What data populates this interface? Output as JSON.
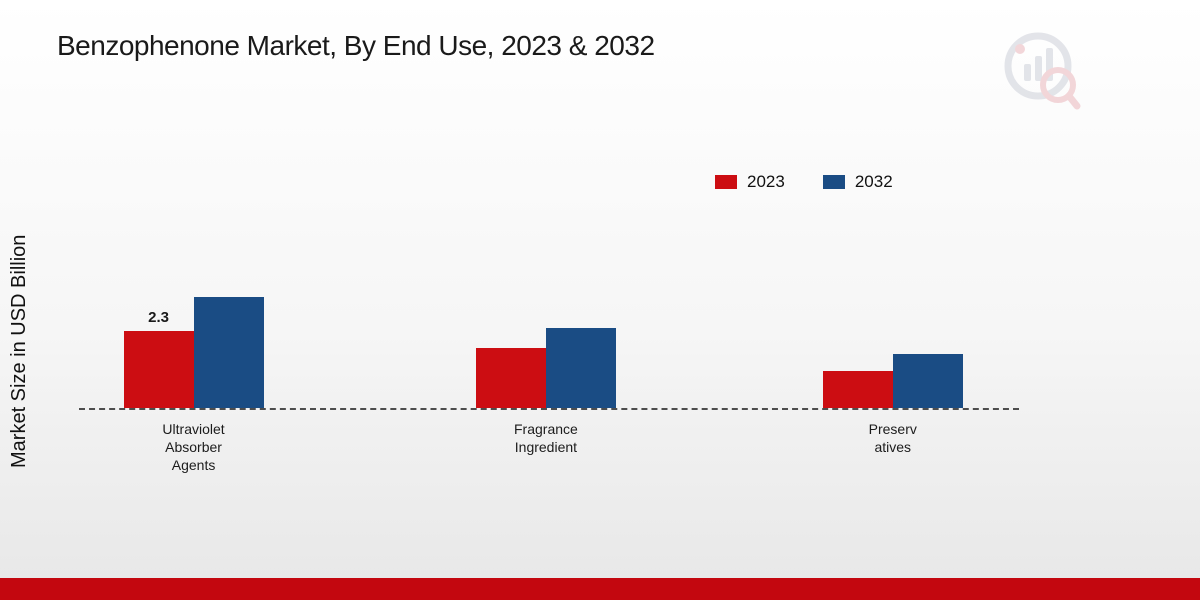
{
  "chart_data": {
    "type": "bar",
    "title": "Benzophenone Market, By End Use, 2023 & 2032",
    "ylabel": "Market Size in USD Billion",
    "xlabel": "",
    "categories": [
      "Ultraviolet Absorber Agents",
      "Fragrance Ingredient",
      "Preservatives"
    ],
    "category_label_lines": [
      [
        "Ultraviolet",
        "Absorber",
        "Agents"
      ],
      [
        "Fragrance",
        "Ingredient"
      ],
      [
        "Preserv",
        "atives"
      ]
    ],
    "series": [
      {
        "name": "2023",
        "color": "#cc0d12",
        "values": [
          2.3,
          1.8,
          1.1
        ]
      },
      {
        "name": "2032",
        "color": "#1a4c84",
        "values": [
          3.3,
          2.4,
          1.6
        ]
      }
    ],
    "annotations": [
      {
        "series": "2023",
        "category": "Ultraviolet Absorber Agents",
        "text": "2.3"
      }
    ],
    "ylim": [
      0,
      4
    ],
    "grid": false,
    "legend_position": "top-right",
    "baseline_style": "dashed"
  },
  "legend": [
    {
      "label": "2023"
    },
    {
      "label": "2032"
    }
  ],
  "colors": {
    "bar_2023": "#cc0d12",
    "bar_2032": "#1a4c84",
    "footer_bar": "#c3070f",
    "background_top": "#ffffff",
    "background_bottom": "#e7e7e7",
    "axis_line": "#4d4d4d",
    "title_text": "#1a1a1a"
  }
}
